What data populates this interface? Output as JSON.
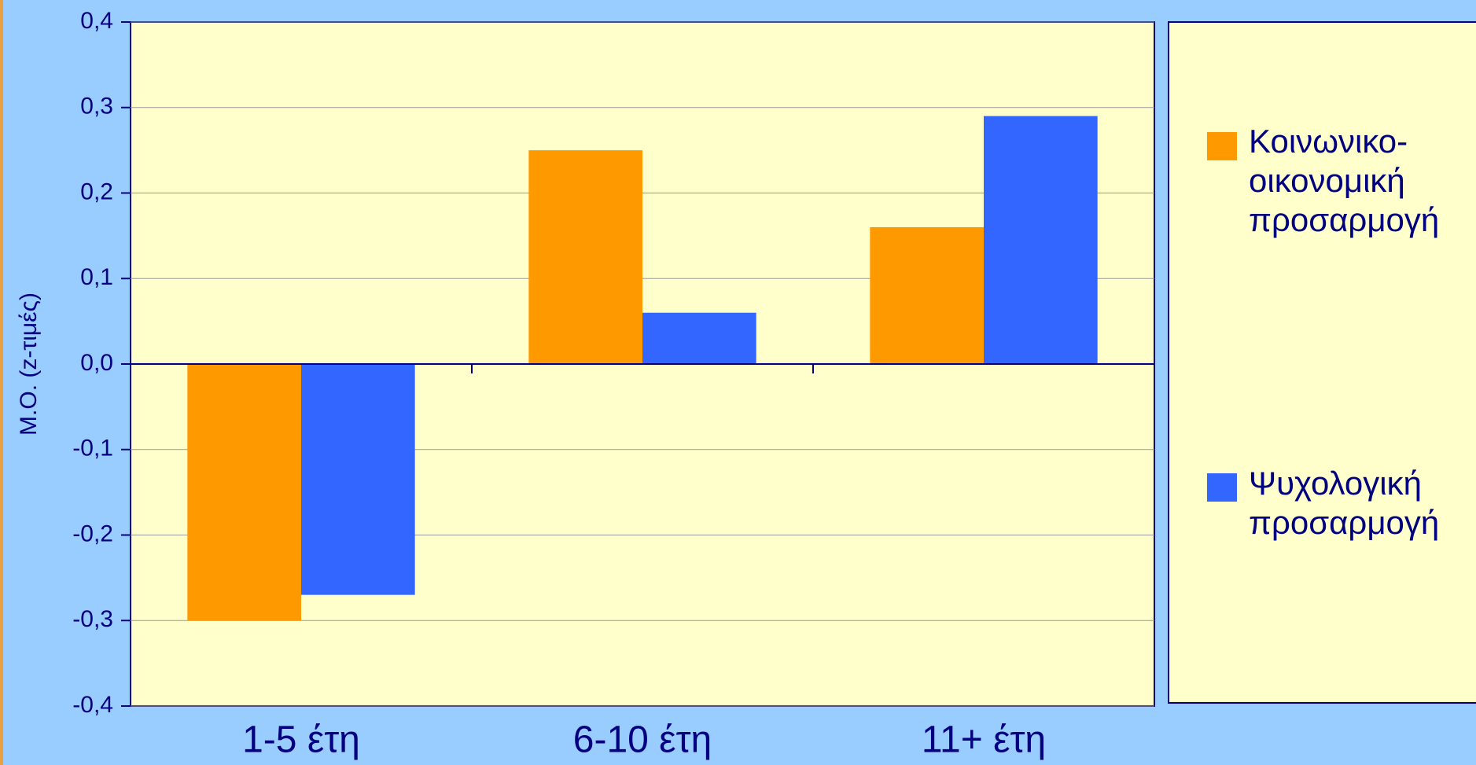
{
  "chart_data": {
    "type": "bar",
    "y_label": "Μ.Ο. (z-τιμές)",
    "categories": [
      "1-5 έτη",
      "6-10 έτη",
      "11+ έτη"
    ],
    "series": [
      {
        "name": "Κοινωνικο-οικονομική προσαρμογή",
        "color": "#ff9900",
        "values": [
          -0.3,
          0.25,
          0.16
        ]
      },
      {
        "name": "Ψυχολογική προσαρμογή",
        "color": "#3366ff",
        "values": [
          -0.27,
          0.06,
          0.29
        ]
      }
    ],
    "ylim": [
      -0.4,
      0.4
    ],
    "yticks": [
      {
        "value": -0.4,
        "label": "-0,4"
      },
      {
        "value": -0.3,
        "label": "-0,3"
      },
      {
        "value": -0.2,
        "label": "-0,2"
      },
      {
        "value": -0.1,
        "label": "-0,1"
      },
      {
        "value": 0,
        "label": "0,0"
      },
      {
        "value": 0.1,
        "label": "0,1"
      },
      {
        "value": 0.2,
        "label": "0,2"
      },
      {
        "value": 0.3,
        "label": "0,3"
      },
      {
        "value": 0.4,
        "label": "0,4"
      }
    ],
    "grid": true
  }
}
